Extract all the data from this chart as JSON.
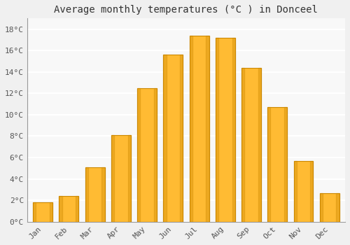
{
  "months": [
    "Jan",
    "Feb",
    "Mar",
    "Apr",
    "May",
    "Jun",
    "Jul",
    "Aug",
    "Sep",
    "Oct",
    "Nov",
    "Dec"
  ],
  "values": [
    1.8,
    2.4,
    5.1,
    8.1,
    12.5,
    15.6,
    17.4,
    17.2,
    14.4,
    10.7,
    5.7,
    2.7
  ],
  "bar_color": "#FFBB33",
  "bar_edge_color": "#CC8800",
  "title": "Average monthly temperatures (°C ) in Donceel",
  "ylabel_ticks": [
    "0°C",
    "2°C",
    "4°C",
    "6°C",
    "8°C",
    "10°C",
    "12°C",
    "14°C",
    "16°C",
    "18°C"
  ],
  "ytick_values": [
    0,
    2,
    4,
    6,
    8,
    10,
    12,
    14,
    16,
    18
  ],
  "ylim": [
    0,
    19
  ],
  "background_color": "#f0f0f0",
  "plot_bg_color": "#f8f8f8",
  "grid_color": "#ffffff",
  "title_fontsize": 10,
  "tick_fontsize": 8,
  "font_family": "monospace",
  "bar_width": 0.75
}
